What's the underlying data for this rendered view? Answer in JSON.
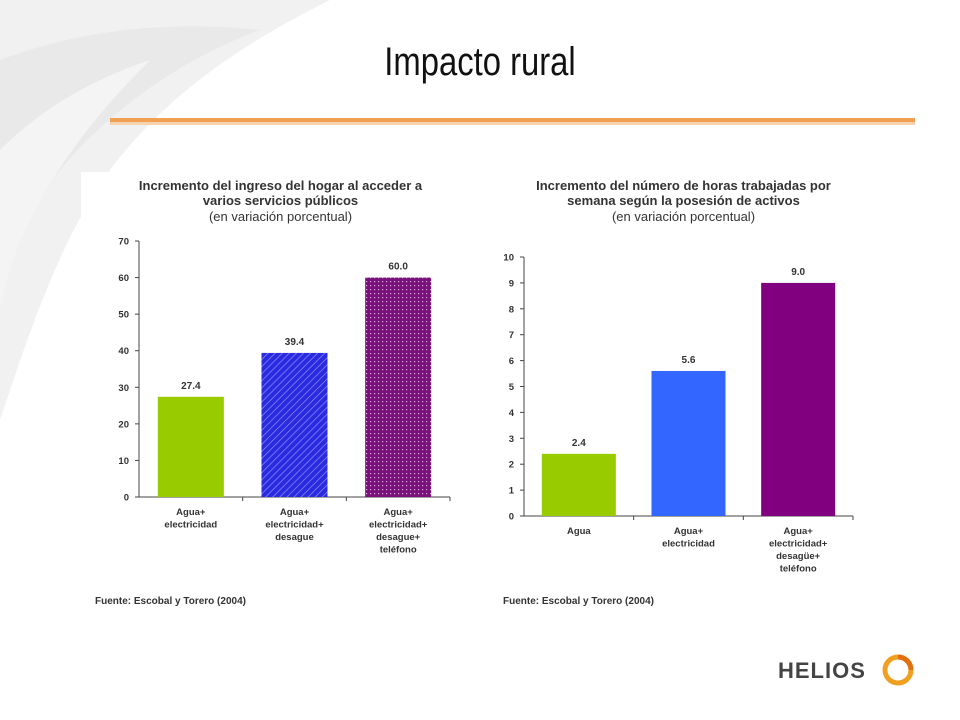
{
  "slide": {
    "title": "Impacto rural",
    "logo_text": "HELIOS",
    "colors": {
      "accent_rule": "#f0a050"
    }
  },
  "chart_data": [
    {
      "type": "bar",
      "title": "Incremento del ingreso del hogar al acceder a varios servicios públicos",
      "title_lines": [
        "Incremento del ingreso del hogar al acceder a",
        "varios servicios públicos"
      ],
      "subtitle": "(en variación porcentual)",
      "categories": [
        [
          "Agua+",
          "electricidad"
        ],
        [
          "Agua+",
          "electricidad+",
          "desague"
        ],
        [
          "Agua+",
          "electricidad+",
          "desague+",
          "teléfono"
        ]
      ],
      "values": [
        27.4,
        39.4,
        60.0
      ],
      "value_labels": [
        "27.4",
        "39.4",
        "60.0"
      ],
      "bar_colors": [
        "#99cc00",
        "#2a2ae0",
        "#8a1a8a"
      ],
      "bar_patterns": [
        "solid",
        "diagonal",
        "dotted"
      ],
      "ylim": [
        0,
        70
      ],
      "yticks": [
        0,
        10,
        20,
        30,
        40,
        50,
        60,
        70
      ],
      "grid": false,
      "source": "Fuente: Escobal y Torero (2004)"
    },
    {
      "type": "bar",
      "title": "Incremento del número de horas trabajadas por semana según la posesión de activos",
      "title_lines": [
        "Incremento del número de horas trabajadas por",
        "semana según la posesión de activos"
      ],
      "subtitle": "(en variación porcentual)",
      "categories": [
        [
          "Agua"
        ],
        [
          "Agua+",
          "electricidad"
        ],
        [
          "Agua+",
          "electricidad+",
          "desagüe+",
          "teléfono"
        ]
      ],
      "values": [
        2.4,
        5.6,
        9.0
      ],
      "value_labels": [
        "2.4",
        "5.6",
        "9.0"
      ],
      "bar_colors": [
        "#99cc00",
        "#3366ff",
        "#800080"
      ],
      "bar_patterns": [
        "solid",
        "solid",
        "solid"
      ],
      "ylim": [
        0,
        10
      ],
      "yticks": [
        0,
        1,
        2,
        3,
        4,
        5,
        6,
        7,
        8,
        9,
        10
      ],
      "grid": false,
      "source": "Fuente: Escobal y Torero (2004)"
    }
  ]
}
